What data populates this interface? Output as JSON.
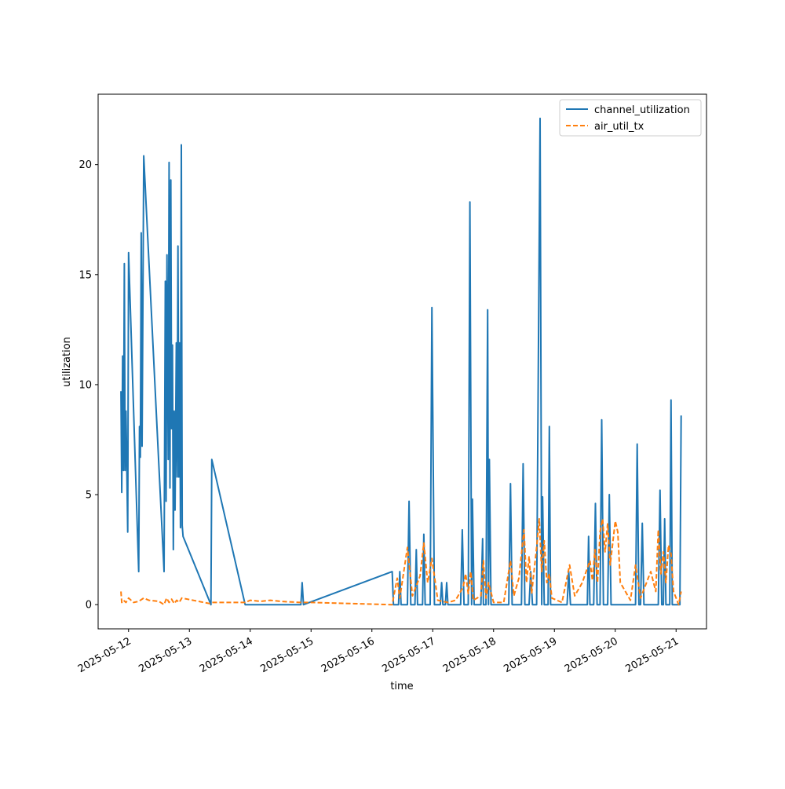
{
  "chart_data": {
    "type": "line",
    "title": "",
    "xlabel": "time",
    "ylabel": "utilization",
    "x_range": [
      "2025-05-11T12:00",
      "2025-05-21T12:00"
    ],
    "ylim": [
      -1.1,
      23.2
    ],
    "x_ticks": [
      "2025-05-12",
      "2025-05-13",
      "2025-05-14",
      "2025-05-15",
      "2025-05-16",
      "2025-05-17",
      "2025-05-18",
      "2025-05-19",
      "2025-05-20",
      "2025-05-21"
    ],
    "y_ticks": [
      0,
      5,
      10,
      15,
      20
    ],
    "grid": false,
    "legend": "top-right",
    "series": [
      {
        "name": "channel_utilization",
        "color": "#1f77b4",
        "style": "solid",
        "points": [
          [
            "2025-05-11T21:00",
            9.7
          ],
          [
            "2025-05-11T21:20",
            5.1
          ],
          [
            "2025-05-11T21:40",
            11.3
          ],
          [
            "2025-05-11T22:00",
            6.1
          ],
          [
            "2025-05-11T22:20",
            15.5
          ],
          [
            "2025-05-11T22:40",
            6.1
          ],
          [
            "2025-05-11T23:00",
            8.8
          ],
          [
            "2025-05-11T23:40",
            3.3
          ],
          [
            "2025-05-12T00:00",
            16.0
          ],
          [
            "2025-05-12T04:00",
            1.5
          ],
          [
            "2025-05-12T04:20",
            8.1
          ],
          [
            "2025-05-12T04:40",
            6.7
          ],
          [
            "2025-05-12T05:00",
            16.9
          ],
          [
            "2025-05-12T05:20",
            7.2
          ],
          [
            "2025-05-12T06:00",
            20.4
          ],
          [
            "2025-05-12T14:00",
            1.5
          ],
          [
            "2025-05-12T14:30",
            14.7
          ],
          [
            "2025-05-12T14:50",
            4.7
          ],
          [
            "2025-05-12T15:10",
            15.9
          ],
          [
            "2025-05-12T15:40",
            6.6
          ],
          [
            "2025-05-12T16:00",
            20.1
          ],
          [
            "2025-05-12T16:20",
            5.3
          ],
          [
            "2025-05-12T16:40",
            19.3
          ],
          [
            "2025-05-12T17:00",
            8.0
          ],
          [
            "2025-05-12T17:20",
            11.8
          ],
          [
            "2025-05-12T17:40",
            2.5
          ],
          [
            "2025-05-12T18:00",
            8.8
          ],
          [
            "2025-05-12T18:20",
            4.3
          ],
          [
            "2025-05-12T18:50",
            11.9
          ],
          [
            "2025-05-12T19:10",
            5.8
          ],
          [
            "2025-05-12T19:30",
            16.3
          ],
          [
            "2025-05-12T19:50",
            5.8
          ],
          [
            "2025-05-12T20:10",
            11.9
          ],
          [
            "2025-05-12T20:30",
            3.5
          ],
          [
            "2025-05-12T20:50",
            20.9
          ],
          [
            "2025-05-12T21:10",
            3.6
          ],
          [
            "2025-05-12T21:30",
            3.1
          ],
          [
            "2025-05-13T08:30",
            0.0
          ],
          [
            "2025-05-13T08:50",
            6.6
          ],
          [
            "2025-05-13T22:00",
            0.0
          ],
          [
            "2025-05-14T20:00",
            0.0
          ],
          [
            "2025-05-14T20:30",
            1.0
          ],
          [
            "2025-05-14T21:00",
            0.0
          ],
          [
            "2025-05-16T08:00",
            1.5
          ],
          [
            "2025-05-16T08:30",
            0.0
          ],
          [
            "2025-05-16T10:30",
            0.0
          ],
          [
            "2025-05-16T11:00",
            1.5
          ],
          [
            "2025-05-16T11:30",
            0.0
          ],
          [
            "2025-05-16T14:00",
            0.0
          ],
          [
            "2025-05-16T14:40",
            4.7
          ],
          [
            "2025-05-16T15:20",
            0.0
          ],
          [
            "2025-05-16T17:00",
            0.0
          ],
          [
            "2025-05-16T17:30",
            2.5
          ],
          [
            "2025-05-16T18:00",
            0.0
          ],
          [
            "2025-05-16T20:00",
            0.0
          ],
          [
            "2025-05-16T20:30",
            3.2
          ],
          [
            "2025-05-16T21:00",
            0.0
          ],
          [
            "2025-05-16T23:00",
            0.0
          ],
          [
            "2025-05-16T23:40",
            13.5
          ],
          [
            "2025-05-17T00:40",
            0.0
          ],
          [
            "2025-05-17T03:00",
            0.0
          ],
          [
            "2025-05-17T03:30",
            1.0
          ],
          [
            "2025-05-17T04:00",
            0.0
          ],
          [
            "2025-05-17T05:00",
            0.0
          ],
          [
            "2025-05-17T05:30",
            1.0
          ],
          [
            "2025-05-17T06:00",
            0.0
          ],
          [
            "2025-05-17T11:00",
            0.0
          ],
          [
            "2025-05-17T11:40",
            3.4
          ],
          [
            "2025-05-17T12:20",
            0.0
          ],
          [
            "2025-05-17T14:00",
            0.0
          ],
          [
            "2025-05-17T14:40",
            18.3
          ],
          [
            "2025-05-17T15:20",
            0.0
          ],
          [
            "2025-05-17T15:40",
            4.8
          ],
          [
            "2025-05-17T16:20",
            0.0
          ],
          [
            "2025-05-17T19:00",
            0.0
          ],
          [
            "2025-05-17T19:40",
            3.0
          ],
          [
            "2025-05-17T20:00",
            0.0
          ],
          [
            "2025-05-17T21:00",
            0.0
          ],
          [
            "2025-05-17T21:40",
            13.4
          ],
          [
            "2025-05-17T22:00",
            0.0
          ],
          [
            "2025-05-17T22:20",
            6.6
          ],
          [
            "2025-05-17T23:00",
            0.0
          ],
          [
            "2025-05-18T06:00",
            0.0
          ],
          [
            "2025-05-18T06:40",
            5.5
          ],
          [
            "2025-05-18T07:20",
            0.0
          ],
          [
            "2025-05-18T11:00",
            0.0
          ],
          [
            "2025-05-18T11:40",
            6.4
          ],
          [
            "2025-05-18T12:20",
            0.0
          ],
          [
            "2025-05-18T14:00",
            0.0
          ],
          [
            "2025-05-18T14:40",
            1.5
          ],
          [
            "2025-05-18T15:20",
            0.0
          ],
          [
            "2025-05-18T17:00",
            0.0
          ],
          [
            "2025-05-18T18:20",
            22.1
          ],
          [
            "2025-05-18T19:00",
            0.0
          ],
          [
            "2025-05-18T19:20",
            4.9
          ],
          [
            "2025-05-18T20:00",
            0.0
          ],
          [
            "2025-05-18T21:30",
            0.0
          ],
          [
            "2025-05-18T22:00",
            8.1
          ],
          [
            "2025-05-18T22:30",
            0.0
          ],
          [
            "2025-05-19T05:00",
            0.0
          ],
          [
            "2025-05-19T05:40",
            1.5
          ],
          [
            "2025-05-19T06:20",
            0.0
          ],
          [
            "2025-05-19T13:00",
            0.0
          ],
          [
            "2025-05-19T13:30",
            3.1
          ],
          [
            "2025-05-19T14:00",
            0.0
          ],
          [
            "2025-05-19T15:30",
            0.0
          ],
          [
            "2025-05-19T16:10",
            4.6
          ],
          [
            "2025-05-19T16:50",
            0.0
          ],
          [
            "2025-05-19T18:00",
            0.0
          ],
          [
            "2025-05-19T18:40",
            8.4
          ],
          [
            "2025-05-19T19:20",
            0.0
          ],
          [
            "2025-05-19T21:00",
            0.0
          ],
          [
            "2025-05-19T21:40",
            5.0
          ],
          [
            "2025-05-19T22:20",
            0.0
          ],
          [
            "2025-05-20T08:00",
            0.0
          ],
          [
            "2025-05-20T08:40",
            7.3
          ],
          [
            "2025-05-20T09:20",
            0.0
          ],
          [
            "2025-05-20T10:00",
            0.0
          ],
          [
            "2025-05-20T10:40",
            3.7
          ],
          [
            "2025-05-20T11:20",
            0.0
          ],
          [
            "2025-05-20T17:00",
            0.0
          ],
          [
            "2025-05-20T17:40",
            5.2
          ],
          [
            "2025-05-20T18:20",
            0.0
          ],
          [
            "2025-05-20T19:00",
            0.0
          ],
          [
            "2025-05-20T19:30",
            3.9
          ],
          [
            "2025-05-20T20:00",
            0.0
          ],
          [
            "2025-05-20T21:30",
            0.0
          ],
          [
            "2025-05-20T22:00",
            9.3
          ],
          [
            "2025-05-20T22:30",
            0.0
          ],
          [
            "2025-05-21T01:00",
            0.0
          ],
          [
            "2025-05-21T01:30",
            0.0
          ],
          [
            "2025-05-21T02:00",
            8.6
          ]
        ]
      },
      {
        "name": "air_util_tx",
        "color": "#ff7f0e",
        "style": "dashed",
        "points": [
          [
            "2025-05-11T21:00",
            0.6
          ],
          [
            "2025-05-11T21:20",
            0.1
          ],
          [
            "2025-05-11T22:00",
            0.2
          ],
          [
            "2025-05-11T23:00",
            0.1
          ],
          [
            "2025-05-12T00:00",
            0.3
          ],
          [
            "2025-05-12T02:00",
            0.1
          ],
          [
            "2025-05-12T04:00",
            0.15
          ],
          [
            "2025-05-12T06:00",
            0.3
          ],
          [
            "2025-05-12T08:00",
            0.2
          ],
          [
            "2025-05-12T12:00",
            0.15
          ],
          [
            "2025-05-12T14:00",
            0.0
          ],
          [
            "2025-05-12T15:00",
            0.3
          ],
          [
            "2025-05-12T16:00",
            0.1
          ],
          [
            "2025-05-12T17:00",
            0.25
          ],
          [
            "2025-05-12T18:00",
            0.05
          ],
          [
            "2025-05-12T19:00",
            0.2
          ],
          [
            "2025-05-12T20:00",
            0.1
          ],
          [
            "2025-05-12T21:00",
            0.3
          ],
          [
            "2025-05-13T08:00",
            0.05
          ],
          [
            "2025-05-13T09:00",
            0.1
          ],
          [
            "2025-05-13T22:00",
            0.1
          ],
          [
            "2025-05-14T00:00",
            0.2
          ],
          [
            "2025-05-14T04:00",
            0.15
          ],
          [
            "2025-05-14T08:00",
            0.2
          ],
          [
            "2025-05-14T12:00",
            0.15
          ],
          [
            "2025-05-14T20:00",
            0.1
          ],
          [
            "2025-05-15T00:00",
            0.1
          ],
          [
            "2025-05-16T08:00",
            0.0
          ],
          [
            "2025-05-16T10:00",
            1.2
          ],
          [
            "2025-05-16T11:00",
            0.3
          ],
          [
            "2025-05-16T14:00",
            2.6
          ],
          [
            "2025-05-16T16:00",
            0.4
          ],
          [
            "2025-05-16T19:00",
            1.3
          ],
          [
            "2025-05-16T20:30",
            2.8
          ],
          [
            "2025-05-16T22:00",
            1.0
          ],
          [
            "2025-05-16T23:40",
            2.1
          ],
          [
            "2025-05-17T02:00",
            0.2
          ],
          [
            "2025-05-17T06:00",
            0.1
          ],
          [
            "2025-05-17T09:00",
            0.2
          ],
          [
            "2025-05-17T12:00",
            0.8
          ],
          [
            "2025-05-17T13:00",
            1.4
          ],
          [
            "2025-05-17T14:00",
            0.5
          ],
          [
            "2025-05-17T15:00",
            1.5
          ],
          [
            "2025-05-17T16:00",
            0.2
          ],
          [
            "2025-05-17T19:00",
            0.4
          ],
          [
            "2025-05-17T20:00",
            2.0
          ],
          [
            "2025-05-17T21:00",
            0.3
          ],
          [
            "2025-05-17T22:00",
            1.0
          ],
          [
            "2025-05-18T00:00",
            0.1
          ],
          [
            "2025-05-18T04:00",
            0.1
          ],
          [
            "2025-05-18T06:40",
            2.0
          ],
          [
            "2025-05-18T08:00",
            0.4
          ],
          [
            "2025-05-18T10:00",
            1.2
          ],
          [
            "2025-05-18T12:00",
            3.4
          ],
          [
            "2025-05-18T13:00",
            1.0
          ],
          [
            "2025-05-18T14:00",
            2.2
          ],
          [
            "2025-05-18T15:00",
            0.5
          ],
          [
            "2025-05-18T17:00",
            2.6
          ],
          [
            "2025-05-18T18:00",
            3.9
          ],
          [
            "2025-05-18T19:00",
            1.5
          ],
          [
            "2025-05-18T20:00",
            2.9
          ],
          [
            "2025-05-18T21:00",
            1.0
          ],
          [
            "2025-05-18T22:00",
            1.4
          ],
          [
            "2025-05-18T23:00",
            0.3
          ],
          [
            "2025-05-19T03:00",
            0.1
          ],
          [
            "2025-05-19T06:00",
            1.8
          ],
          [
            "2025-05-19T08:00",
            0.4
          ],
          [
            "2025-05-19T11:00",
            1.0
          ],
          [
            "2025-05-19T14:00",
            2.0
          ],
          [
            "2025-05-19T15:00",
            1.1
          ],
          [
            "2025-05-19T16:00",
            2.5
          ],
          [
            "2025-05-19T17:00",
            1.0
          ],
          [
            "2025-05-19T18:00",
            3.3
          ],
          [
            "2025-05-19T19:00",
            3.9
          ],
          [
            "2025-05-19T20:00",
            2.4
          ],
          [
            "2025-05-19T21:00",
            3.7
          ],
          [
            "2025-05-19T22:00",
            1.8
          ],
          [
            "2025-05-20T00:00",
            3.8
          ],
          [
            "2025-05-20T01:00",
            3.3
          ],
          [
            "2025-05-20T02:00",
            1.0
          ],
          [
            "2025-05-20T06:00",
            0.2
          ],
          [
            "2025-05-20T08:00",
            1.8
          ],
          [
            "2025-05-20T10:00",
            0.3
          ],
          [
            "2025-05-20T14:00",
            1.5
          ],
          [
            "2025-05-20T16:00",
            0.6
          ],
          [
            "2025-05-20T17:00",
            3.4
          ],
          [
            "2025-05-20T18:00",
            1.4
          ],
          [
            "2025-05-20T19:00",
            2.4
          ],
          [
            "2025-05-20T20:00",
            1.0
          ],
          [
            "2025-05-20T21:00",
            2.7
          ],
          [
            "2025-05-20T22:00",
            2.3
          ],
          [
            "2025-05-20T23:00",
            0.6
          ],
          [
            "2025-05-21T00:00",
            0.3
          ],
          [
            "2025-05-21T01:00",
            0.0
          ],
          [
            "2025-05-21T02:00",
            0.6
          ]
        ]
      }
    ]
  }
}
